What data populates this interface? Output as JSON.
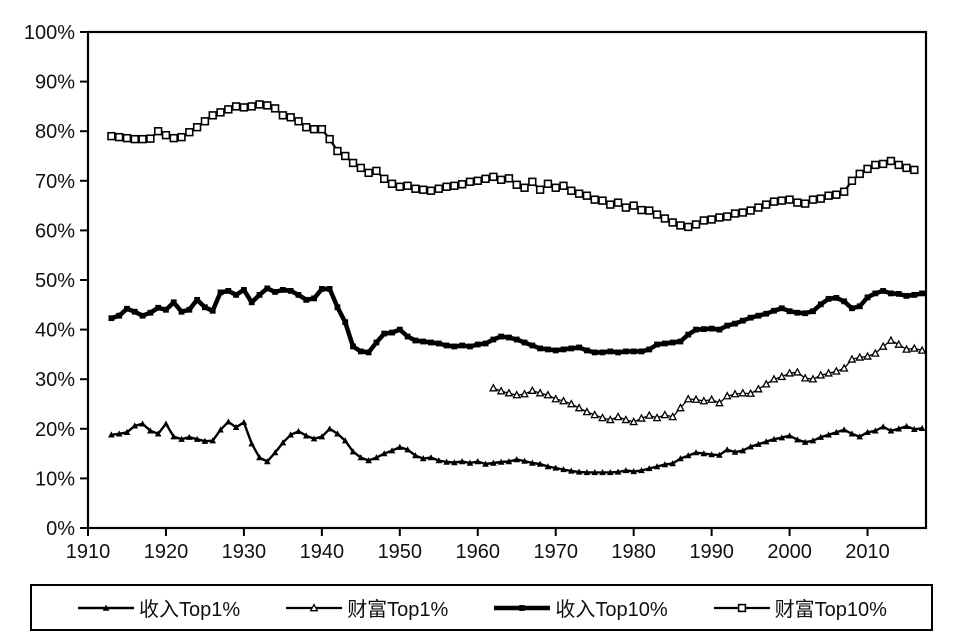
{
  "chart_data": {
    "type": "line",
    "title": "",
    "background_color": "#ffffff",
    "axis_color": "#000000",
    "line_color": "#000000",
    "grid": false,
    "x_axis": {
      "range": [
        1910,
        2017.5
      ],
      "tick_values": [
        1910,
        1920,
        1930,
        1940,
        1950,
        1960,
        1970,
        1980,
        1990,
        2000,
        2010
      ],
      "tick_labels": [
        "1910",
        "1920",
        "1930",
        "1940",
        "1950",
        "1960",
        "1970",
        "1980",
        "1990",
        "2000",
        "2010"
      ]
    },
    "y_axis": {
      "range": [
        0,
        100
      ],
      "tick_values": [
        0,
        10,
        20,
        30,
        40,
        50,
        60,
        70,
        80,
        90,
        100
      ],
      "tick_labels": [
        "0%",
        "10%",
        "20%",
        "30%",
        "40%",
        "50%",
        "60%",
        "70%",
        "80%",
        "90%",
        "100%"
      ]
    },
    "legend": {
      "position": "bottom",
      "border": true
    },
    "series": [
      {
        "id": "income-top1",
        "name": "收入Top1%",
        "marker": "triangle-filled",
        "start_year": 1913,
        "values": [
          18.8,
          19.0,
          19.3,
          20.6,
          21.0,
          19.6,
          19.0,
          21.0,
          18.4,
          17.9,
          18.3,
          17.9,
          17.5,
          17.6,
          19.8,
          21.4,
          20.3,
          21.3,
          17.0,
          14.2,
          13.4,
          15.2,
          17.2,
          18.8,
          19.5,
          18.6,
          18.0,
          18.4,
          20.0,
          19.0,
          17.6,
          15.4,
          14.2,
          13.6,
          14.2,
          15.0,
          15.6,
          16.3,
          15.8,
          14.6,
          14.0,
          14.2,
          13.6,
          13.3,
          13.2,
          13.4,
          13.1,
          13.4,
          12.9,
          13.1,
          13.3,
          13.4,
          13.8,
          13.5,
          13.1,
          12.9,
          12.4,
          12.1,
          11.8,
          11.5,
          11.3,
          11.2,
          11.2,
          11.2,
          11.2,
          11.3,
          11.6,
          11.4,
          11.6,
          12.0,
          12.4,
          12.8,
          13.0,
          14.0,
          14.6,
          15.2,
          15.0,
          14.8,
          14.7,
          15.8,
          15.3,
          15.6,
          16.4,
          16.9,
          17.4,
          17.9,
          18.2,
          18.6,
          17.8,
          17.3,
          17.6,
          18.3,
          18.8,
          19.3,
          19.8,
          19.0,
          18.4,
          19.3,
          19.6,
          20.4,
          19.6,
          20.0,
          20.5,
          19.9,
          20.1
        ]
      },
      {
        "id": "wealth-top1",
        "name": "财富Top1%",
        "marker": "triangle-open",
        "start_year": 1962,
        "values": [
          28.2,
          27.6,
          27.2,
          26.8,
          27.0,
          27.7,
          27.2,
          26.8,
          26.0,
          25.6,
          25.0,
          24.2,
          23.4,
          22.8,
          22.2,
          21.8,
          22.4,
          21.8,
          21.4,
          22.1,
          22.7,
          22.2,
          22.8,
          22.4,
          24.2,
          26.0,
          25.9,
          25.6,
          25.9,
          25.2,
          26.6,
          27.0,
          27.2,
          27.1,
          28.0,
          29.0,
          30.0,
          30.5,
          31.2,
          31.4,
          30.2,
          30.0,
          30.8,
          31.2,
          31.6,
          32.2,
          34.0,
          34.4,
          34.6,
          35.2,
          36.6,
          37.8,
          37.0,
          36.0,
          36.2,
          35.8
        ]
      },
      {
        "id": "income-top10",
        "name": "收入Top10%",
        "marker": "square-filled",
        "start_year": 1913,
        "values": [
          42.3,
          42.8,
          44.2,
          43.6,
          42.8,
          43.4,
          44.4,
          44.0,
          45.5,
          43.6,
          44.0,
          46.0,
          44.5,
          43.8,
          47.5,
          47.8,
          47.0,
          48.0,
          45.5,
          47.0,
          48.3,
          47.6,
          48.0,
          47.8,
          47.0,
          46.0,
          46.3,
          48.2,
          48.2,
          44.5,
          41.5,
          36.6,
          35.6,
          35.4,
          37.4,
          39.2,
          39.4,
          40.0,
          38.6,
          37.8,
          37.6,
          37.4,
          37.2,
          36.8,
          36.6,
          36.8,
          36.6,
          37.0,
          37.2,
          38.0,
          38.6,
          38.4,
          38.0,
          37.4,
          36.8,
          36.2,
          36.0,
          35.8,
          36.0,
          36.2,
          36.4,
          35.8,
          35.4,
          35.4,
          35.6,
          35.4,
          35.6,
          35.6,
          35.6,
          36.0,
          37.0,
          37.2,
          37.4,
          37.6,
          39.0,
          40.0,
          40.1,
          40.2,
          40.0,
          40.8,
          41.2,
          41.8,
          42.4,
          42.8,
          43.2,
          43.8,
          44.3,
          43.7,
          43.4,
          43.3,
          43.7,
          45.1,
          46.2,
          46.4,
          45.7,
          44.3,
          44.7,
          46.5,
          47.3,
          47.8,
          47.3,
          47.2,
          46.8,
          47.0,
          47.3
        ]
      },
      {
        "id": "wealth-top10",
        "name": "财富Top10%",
        "marker": "square-open",
        "start_year": 1913,
        "values": [
          79.0,
          78.8,
          78.6,
          78.4,
          78.4,
          78.5,
          80.0,
          79.2,
          78.6,
          78.8,
          79.8,
          80.8,
          82.0,
          83.2,
          83.8,
          84.4,
          85.0,
          84.8,
          85.0,
          85.4,
          85.2,
          84.6,
          83.2,
          82.8,
          82.0,
          80.8,
          80.4,
          80.4,
          78.4,
          76.0,
          75.0,
          73.6,
          72.6,
          71.6,
          72.0,
          70.4,
          69.4,
          68.8,
          69.0,
          68.4,
          68.2,
          68.0,
          68.4,
          68.8,
          69.0,
          69.3,
          69.8,
          70.0,
          70.4,
          70.8,
          70.2,
          70.5,
          69.2,
          68.6,
          69.8,
          68.2,
          69.4,
          68.6,
          69.0,
          68.0,
          67.4,
          67.0,
          66.2,
          66.0,
          65.2,
          65.6,
          64.6,
          65.0,
          64.1,
          64.0,
          63.2,
          62.4,
          61.6,
          61.0,
          60.7,
          61.2,
          62.0,
          62.2,
          62.6,
          62.8,
          63.4,
          63.6,
          64.0,
          64.6,
          65.2,
          65.8,
          66.0,
          66.2,
          65.6,
          65.4,
          66.2,
          66.4,
          67.0,
          67.2,
          67.8,
          70.0,
          71.4,
          72.4,
          73.2,
          73.4,
          74.0,
          73.2,
          72.6,
          72.2
        ]
      }
    ]
  }
}
